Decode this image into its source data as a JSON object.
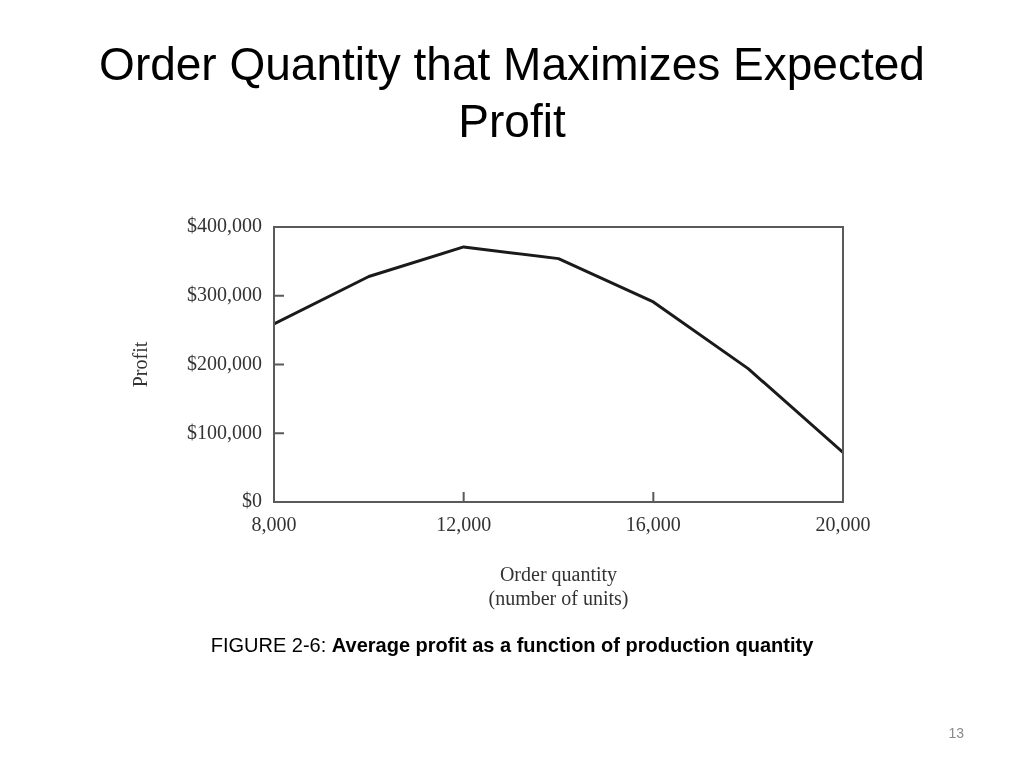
{
  "chart_data": {
    "type": "line",
    "title": "Order Quantity that Maximizes Expected Profit",
    "xlabel": "Order quantity\n(number of units)",
    "ylabel": "Profit",
    "x": [
      8000,
      10000,
      12000,
      14000,
      16000,
      18000,
      20000
    ],
    "values": [
      259000,
      328000,
      371000,
      354000,
      291000,
      194000,
      72000
    ],
    "color": "#1a1a1a",
    "xlim": [
      8000,
      20000
    ],
    "ylim": [
      0,
      400000
    ],
    "xticks": [
      {
        "value": 8000,
        "label": "8,000"
      },
      {
        "value": 12000,
        "label": "12,000"
      },
      {
        "value": 16000,
        "label": "16,000"
      },
      {
        "value": 20000,
        "label": "20,000"
      }
    ],
    "yticks": [
      {
        "value": 0,
        "label": "$0"
      },
      {
        "value": 100000,
        "label": "$100,000"
      },
      {
        "value": 200000,
        "label": "$200,000"
      },
      {
        "value": 300000,
        "label": "$300,000"
      },
      {
        "value": 400000,
        "label": "$400,000"
      }
    ],
    "grid": false,
    "legend": false,
    "marker": "none",
    "line_style": "solid",
    "annotations": [
      "FIGURE 2-6: Average profit as a function of production quantity",
      "13"
    ]
  }
}
